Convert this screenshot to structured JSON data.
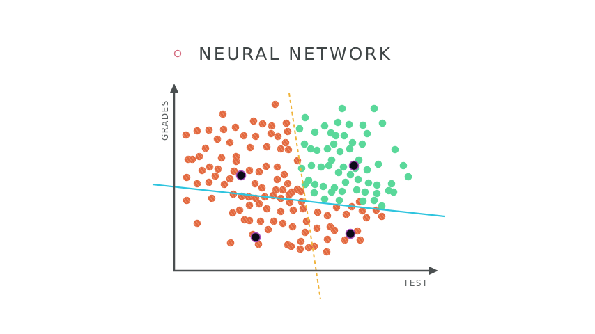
{
  "title": "NEURAL NETWORK",
  "xlabel": "TEST",
  "ylabel": "GRADES",
  "colors": {
    "red_point": "#e2683f",
    "red_stripe": "#f2a07c",
    "green_point": "#5ad89a",
    "highlight_fill": "#0b0b18",
    "highlight_ring": "#a349b5",
    "blue_line": "#2ec4de",
    "orange_dashed": "#f0b43c",
    "axis": "#4a4f50",
    "title_marker": "#d46a7e"
  },
  "icons": {
    "title_marker": "circle-outline-icon",
    "x_axis_arrow": "arrow-right-icon",
    "y_axis_arrow": "arrow-up-icon"
  }
}
